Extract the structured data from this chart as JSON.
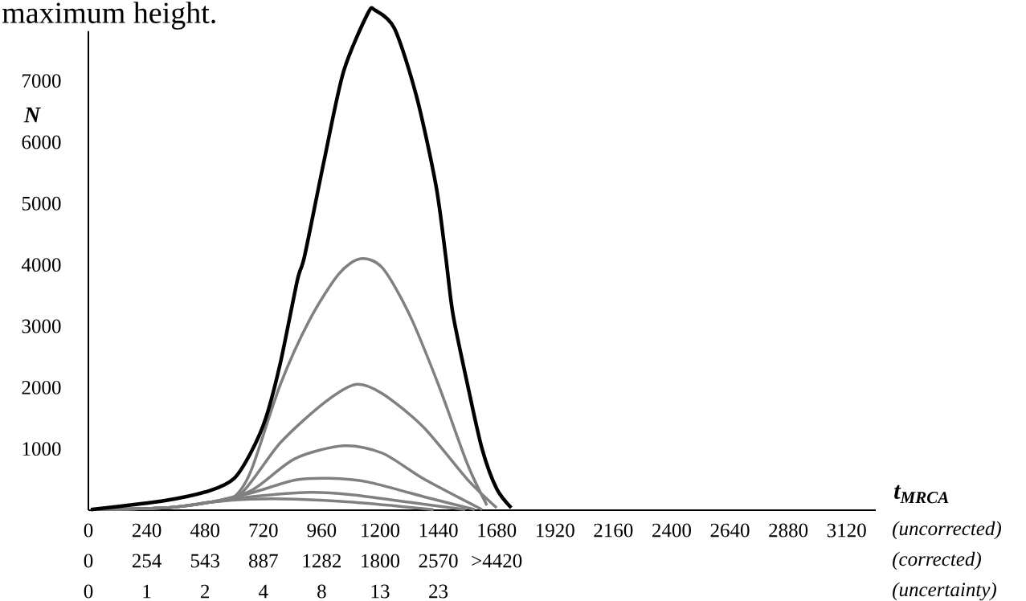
{
  "chart_data": [
    {
      "type": "line",
      "title": "maximum height.",
      "xlabel": "t$_{MRCA}$",
      "ylabel": "N",
      "annotations": [
        "(uncorrected)"
      ],
      "xlim": [
        0,
        3240
      ],
      "ylim": [
        0,
        8200
      ],
      "xticks": [
        0,
        240,
        480,
        720,
        960,
        1200,
        1440,
        1680,
        1920,
        2160,
        2400,
        2640,
        2880,
        3120
      ],
      "yticks": [
        1000,
        2000,
        3000,
        4000,
        5000,
        6000,
        7000
      ],
      "series": [
        {
          "color": "#808080",
          "x": [
            10,
            320,
            500,
            670,
            850,
            1090,
            1420
          ],
          "values": [
            10,
            40,
            130,
            180,
            180,
            130,
            10
          ]
        },
        {
          "color": "#808080",
          "x": [
            10,
            320,
            500,
            670,
            910,
            1090,
            1320,
            1550
          ],
          "values": [
            10,
            40,
            130,
            220,
            290,
            250,
            130,
            10
          ]
        },
        {
          "color": "#808080",
          "x": [
            10,
            320,
            500,
            670,
            850,
            990,
            1150,
            1380,
            1590
          ],
          "values": [
            10,
            40,
            130,
            280,
            490,
            520,
            460,
            220,
            10
          ]
        },
        {
          "color": "#808080",
          "x": [
            10,
            320,
            500,
            670,
            850,
            1050,
            1210,
            1380,
            1620
          ],
          "values": [
            10,
            40,
            130,
            320,
            840,
            1050,
            930,
            510,
            10
          ]
        },
        {
          "color": "#808080",
          "x": [
            10,
            320,
            500,
            630,
            790,
            970,
            1100,
            1210,
            1380,
            1560,
            1680
          ],
          "values": [
            10,
            40,
            130,
            280,
            1100,
            1750,
            2050,
            1900,
            1350,
            500,
            40
          ]
        },
        {
          "color": "#808080",
          "x": [
            10,
            320,
            500,
            600,
            670,
            790,
            910,
            1030,
            1120,
            1210,
            1320,
            1440,
            1560,
            1640
          ],
          "values": [
            10,
            40,
            130,
            220,
            650,
            2050,
            3100,
            3850,
            4100,
            3950,
            3200,
            2050,
            750,
            80
          ]
        },
        {
          "color": "#000000",
          "x": [
            10,
            320,
            500,
            600,
            670,
            730,
            790,
            860,
            890,
            970,
            1050,
            1150,
            1180,
            1260,
            1350,
            1430,
            1470,
            1500,
            1560,
            1620,
            1680,
            1740
          ],
          "values": [
            10,
            160,
            320,
            520,
            950,
            1500,
            2400,
            3750,
            4150,
            5700,
            7150,
            8100,
            8150,
            7850,
            6750,
            5300,
            4150,
            3200,
            2050,
            1000,
            350,
            40
          ]
        }
      ]
    },
    {
      "type": "other",
      "title": "(corrected)",
      "annotations": [
        "0",
        "254",
        "543",
        "887",
        "1282",
        "1800",
        "2570",
        ">4420"
      ]
    },
    {
      "type": "other",
      "title": "(uncertainty)",
      "annotations": [
        "0",
        "1",
        "2",
        "4",
        "8",
        "13",
        "23"
      ]
    }
  ]
}
